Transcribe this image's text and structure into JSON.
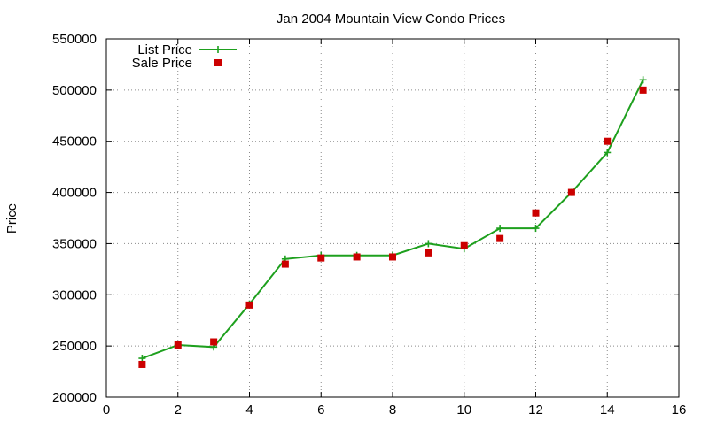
{
  "chart_data": {
    "type": "line",
    "title": "Jan 2004 Mountain View Condo Prices",
    "xlabel": "",
    "ylabel": "Price",
    "xlim": [
      0,
      16
    ],
    "ylim": [
      200000,
      550000
    ],
    "xticks": [
      0,
      2,
      4,
      6,
      8,
      10,
      12,
      14,
      16
    ],
    "yticks": [
      200000,
      250000,
      300000,
      350000,
      400000,
      450000,
      500000,
      550000
    ],
    "grid": true,
    "legend_position": "top-left",
    "series": [
      {
        "name": "List Price",
        "style": "lines+points",
        "marker": "plus",
        "color": "#1ea01e",
        "x": [
          1,
          2,
          3,
          4,
          5,
          6,
          7,
          8,
          9,
          10,
          11,
          12,
          13,
          14,
          15
        ],
        "y": [
          238000,
          251000,
          249000,
          291000,
          335000,
          338500,
          338500,
          338500,
          350000,
          345000,
          365000,
          365000,
          400000,
          439000,
          510000
        ]
      },
      {
        "name": "Sale Price",
        "style": "points",
        "marker": "square",
        "color": "#cc0000",
        "x": [
          1,
          2,
          3,
          4,
          5,
          6,
          7,
          8,
          9,
          10,
          11,
          12,
          13,
          14,
          15
        ],
        "y": [
          232000,
          251000,
          254000,
          290000,
          330000,
          336000,
          337000,
          337000,
          341000,
          348000,
          355000,
          380000,
          400000,
          450000,
          500000
        ]
      }
    ]
  }
}
